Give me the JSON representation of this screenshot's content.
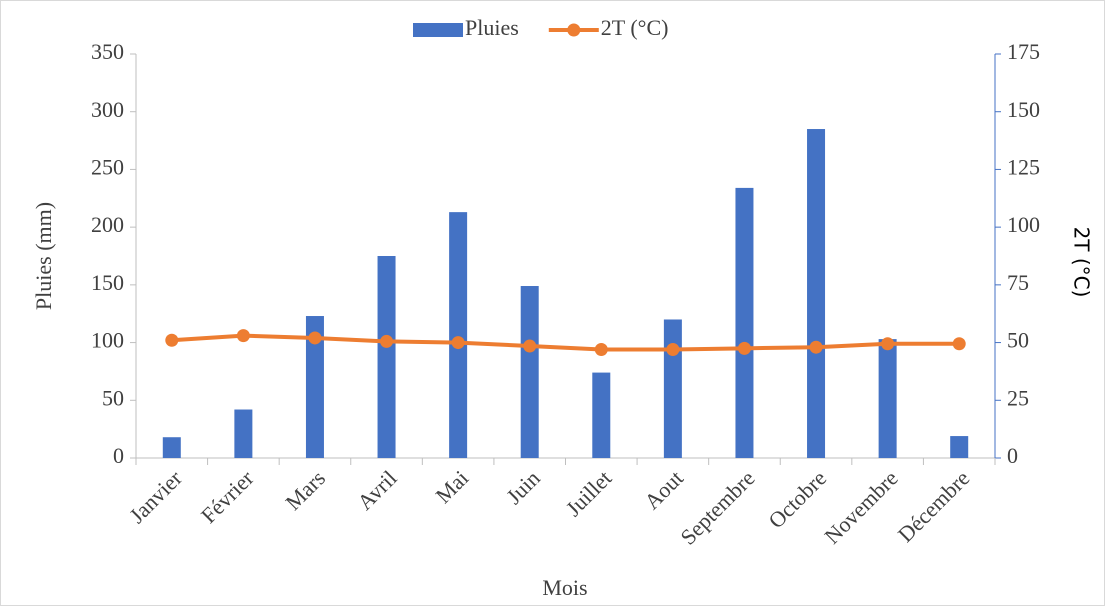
{
  "chart_data": {
    "type": "bar_line",
    "x_label": "Mois",
    "y_label": "Pluies (mm)",
    "y2_label": "2T (°C)",
    "categories": [
      "Janvier",
      "Février",
      "Mars",
      "Avril",
      "Mai",
      "Juin",
      "Juillet",
      "Aout",
      "Septembre",
      "Octobre",
      "Novembre",
      "Décembre"
    ],
    "series": [
      {
        "name": "Pluies",
        "type": "bar",
        "color": "#4472c4",
        "axis": "y",
        "values": [
          18,
          42,
          123,
          175,
          213,
          149,
          74,
          120,
          234,
          285,
          103,
          19
        ]
      },
      {
        "name": "2T (°C)",
        "type": "line",
        "color": "#ed7d31",
        "axis": "y2",
        "values": [
          51,
          53,
          52,
          50.5,
          50,
          48.5,
          47,
          47,
          47.5,
          48,
          49.5,
          49.5
        ]
      }
    ],
    "ylim": [
      0,
      350
    ],
    "yticks": [
      0,
      50,
      100,
      150,
      200,
      250,
      300,
      350
    ],
    "y2lim": [
      0,
      175
    ],
    "y2ticks": [
      0,
      25,
      50,
      75,
      100,
      125,
      150,
      175
    ],
    "legend": "top"
  }
}
